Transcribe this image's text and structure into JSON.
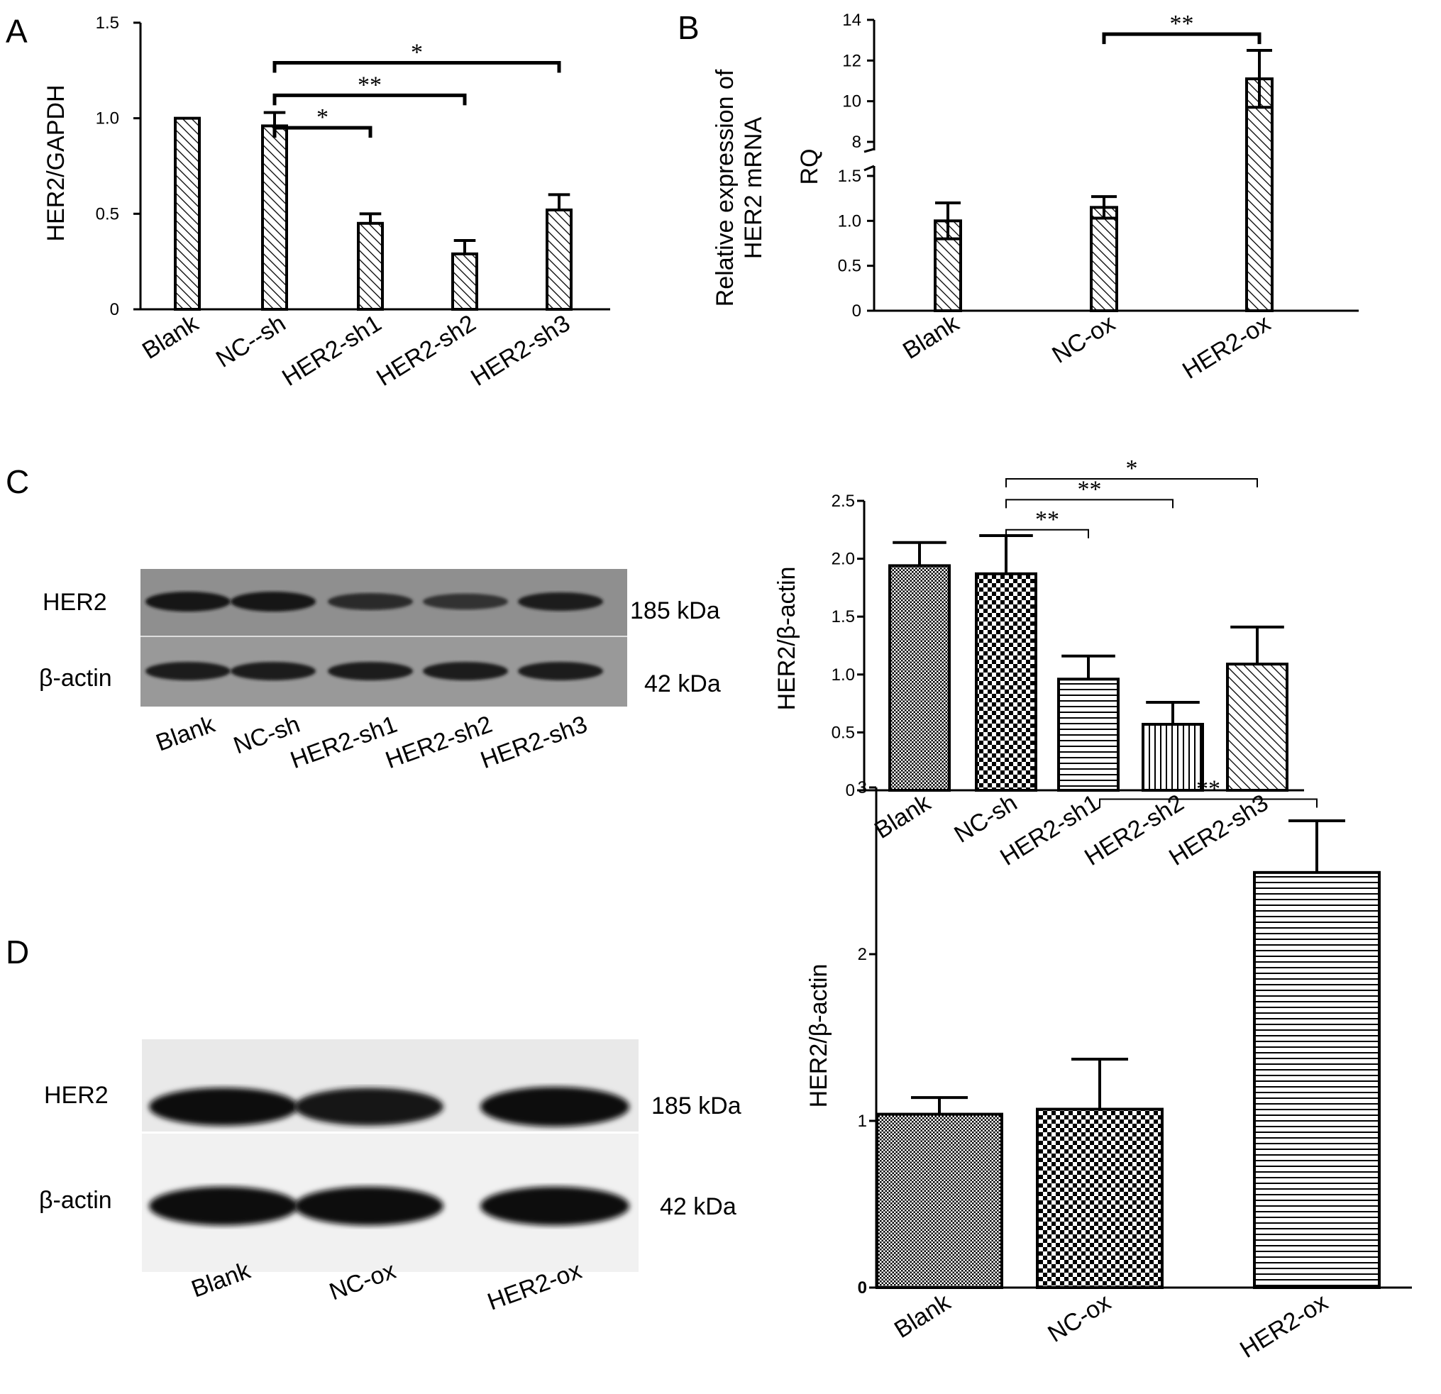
{
  "panels": {
    "A": {
      "letter": "A"
    },
    "B": {
      "letter": "B"
    },
    "C": {
      "letter": "C"
    },
    "D": {
      "letter": "D"
    }
  },
  "blots": {
    "C": {
      "rows": [
        {
          "label": "HER2",
          "kda": "185 kDa",
          "intensity": [
            0.85,
            0.85,
            0.55,
            0.45,
            0.7
          ]
        },
        {
          "label": "β-actin",
          "kda": "42 kDa",
          "intensity": [
            0.7,
            0.7,
            0.7,
            0.7,
            0.7
          ]
        }
      ],
      "lanes": [
        "Blank",
        "NC-sh",
        "HER2-sh1",
        "HER2-sh2",
        "HER2-sh3"
      ]
    },
    "D": {
      "rows": [
        {
          "label": "HER2",
          "kda": "185 kDa",
          "intensity": [
            0.9,
            0.88,
            1.0
          ]
        },
        {
          "label": "β-actin",
          "kda": "42 kDa",
          "intensity": [
            0.95,
            0.95,
            0.95
          ]
        }
      ],
      "lanes": [
        "Blank",
        "NC-ox",
        "HER2-ox"
      ]
    }
  },
  "chart_data": [
    {
      "id": "A",
      "type": "bar",
      "ylabel": "HER2/GAPDH",
      "categories": [
        "Blank",
        "NC--sh",
        "HER2-sh1",
        "HER2-sh2",
        "HER2-sh3"
      ],
      "values": [
        1.0,
        0.96,
        0.45,
        0.29,
        0.52
      ],
      "errors": [
        0.0,
        0.07,
        0.05,
        0.07,
        0.08
      ],
      "ylim": [
        0,
        1.5
      ],
      "yticks": [
        "0",
        "0.5",
        "1.0",
        "1.5"
      ],
      "ytick_values": [
        0,
        0.5,
        1.0,
        1.5
      ],
      "pattern": [
        "diag",
        "diag",
        "diag",
        "diag",
        "diag"
      ],
      "significance": [
        {
          "from": 1,
          "to": 2,
          "label": "*",
          "level": 0.95
        },
        {
          "from": 1,
          "to": 3,
          "label": "**",
          "level": 1.12
        },
        {
          "from": 1,
          "to": 4,
          "label": "*",
          "level": 1.29
        }
      ]
    },
    {
      "id": "B",
      "type": "bar",
      "ylabel_lines": [
        "Relative expression of",
        "HER2 mRNA"
      ],
      "ylabel2": "RQ",
      "categories": [
        "Blank",
        "NC-ox",
        "HER2-ox"
      ],
      "values": [
        1.0,
        1.15,
        11.1
      ],
      "errors": [
        0.2,
        0.12,
        1.4
      ],
      "broken_axis": {
        "lower": [
          0,
          1.5
        ],
        "upper": [
          8,
          14
        ]
      },
      "yticks_lower": [
        "0",
        "0.5",
        "1.0",
        "1.5"
      ],
      "ytick_values_lower": [
        0,
        0.5,
        1.0,
        1.5
      ],
      "yticks_upper": [
        "8",
        "10",
        "12",
        "14"
      ],
      "ytick_values_upper": [
        8,
        10,
        12,
        14
      ],
      "significance": [
        {
          "from": 1,
          "to": 2,
          "label": "**",
          "level": 13.3
        }
      ]
    },
    {
      "id": "C",
      "type": "bar",
      "ylabel": "HER2/β-actin",
      "categories": [
        "Blank",
        "NC-sh",
        "HER2-sh1",
        "HER2-sh2",
        "HER2-sh3"
      ],
      "values": [
        1.94,
        1.87,
        0.96,
        0.57,
        1.09
      ],
      "errors": [
        0.2,
        0.33,
        0.2,
        0.19,
        0.32
      ],
      "ylim": [
        0,
        2.5
      ],
      "yticks": [
        "0",
        "0.5",
        "1.0",
        "1.5",
        "2.0",
        "2.5"
      ],
      "ytick_values": [
        0,
        0.5,
        1.0,
        1.5,
        2.0,
        2.5
      ],
      "pattern": [
        "fine",
        "checker",
        "hlines",
        "vlines",
        "diag"
      ],
      "significance": [
        {
          "from": 1,
          "to": 2,
          "label": "**",
          "level": 2.25
        },
        {
          "from": 1,
          "to": 3,
          "label": "**",
          "level": 2.51
        },
        {
          "from": 1,
          "to": 4,
          "label": "*",
          "level": 2.69
        }
      ]
    },
    {
      "id": "D",
      "type": "bar",
      "ylabel": "HER2/β-actin",
      "categories": [
        "Blank",
        "NC-ox",
        "HER2-ox"
      ],
      "values": [
        1.04,
        1.07,
        2.49
      ],
      "errors": [
        0.1,
        0.3,
        0.31
      ],
      "ylim": [
        0,
        3
      ],
      "yticks": [
        "0",
        "1",
        "2",
        "3"
      ],
      "ytick_values": [
        0,
        1,
        2,
        3
      ],
      "pattern": [
        "fine",
        "checker",
        "hlines"
      ],
      "significance": [
        {
          "from": 1,
          "to": 2,
          "label": "**",
          "level": 2.93
        }
      ]
    }
  ]
}
